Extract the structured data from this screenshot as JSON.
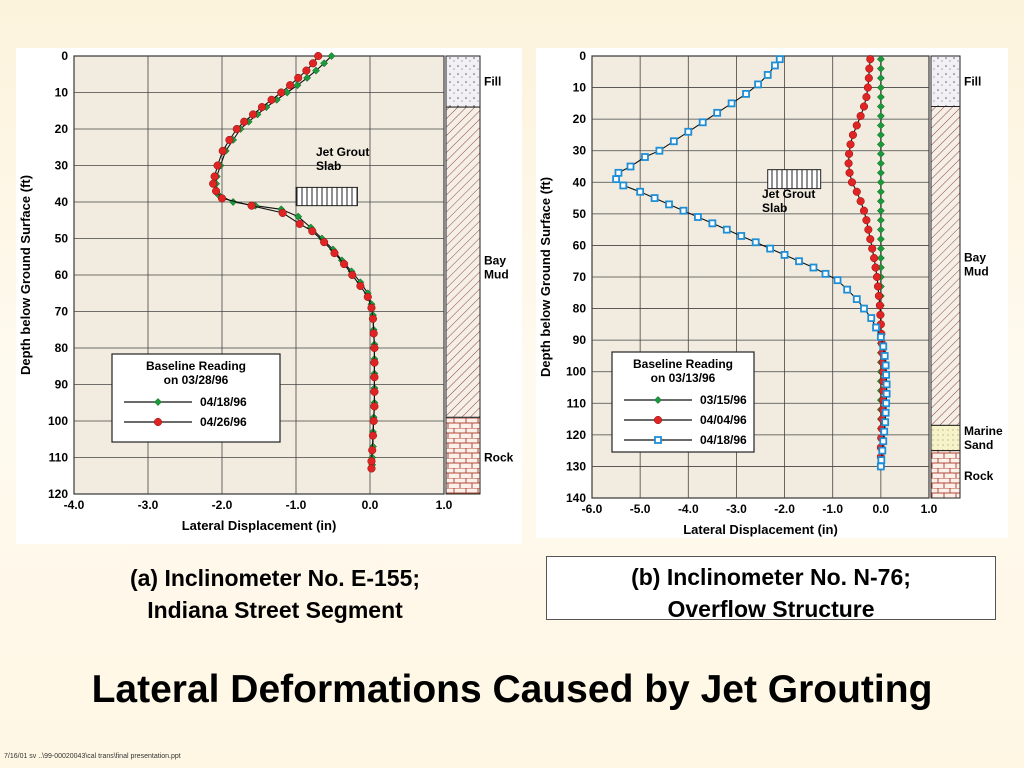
{
  "slide": {
    "title": "Lateral Deformations Caused by Jet Grouting",
    "footer_note": "7/16/01 sv ..\\99-00020043\\cal trans\\final presentation.ppt"
  },
  "chart_data": [
    {
      "type": "line",
      "caption_line1": "(a) Inclinometer No. E-155;",
      "caption_line2": "Indiana Street Segment",
      "xlabel": "Lateral Displacement (in)",
      "ylabel": "Depth below Ground Surface (ft)",
      "xlim": [
        -4.0,
        1.0
      ],
      "ylim": [
        0,
        120
      ],
      "xticks": [
        "-4.0",
        "-3.0",
        "-2.0",
        "-1.0",
        "0.0",
        "1.0"
      ],
      "yticks": [
        "0",
        "10",
        "20",
        "30",
        "40",
        "50",
        "60",
        "70",
        "80",
        "90",
        "100",
        "110",
        "120"
      ],
      "grid": true,
      "legend": {
        "title_line1": "Baseline Reading",
        "title_line2": "on 03/28/96",
        "placement": "bottom-left"
      },
      "annotation_line1": "Jet Grout",
      "annotation_line2": "Slab",
      "slab_x": [
        -1.0,
        -0.17
      ],
      "slab_depth": [
        36,
        41
      ],
      "strata": [
        {
          "name": "Fill",
          "top": 0,
          "bottom": 14,
          "pattern": "fill",
          "label_depth": 7
        },
        {
          "name": "Bay Mud",
          "top": 14,
          "bottom": 99,
          "pattern": "hatch",
          "label_depth": 58
        },
        {
          "name": "Rock",
          "top": 99,
          "bottom": 120,
          "pattern": "brick",
          "label_depth": 110
        }
      ],
      "series": [
        {
          "name": "04/18/96",
          "color": "#1b9a3c",
          "marker": "diamond",
          "points": [
            [
              -0.52,
              0
            ],
            [
              -0.62,
              2
            ],
            [
              -0.73,
              4
            ],
            [
              -0.85,
              6
            ],
            [
              -0.98,
              8
            ],
            [
              -1.12,
              10
            ],
            [
              -1.26,
              12
            ],
            [
              -1.4,
              14
            ],
            [
              -1.52,
              16
            ],
            [
              -1.64,
              18
            ],
            [
              -1.75,
              20
            ],
            [
              -1.85,
              23
            ],
            [
              -1.95,
              26
            ],
            [
              -2.02,
              30
            ],
            [
              -2.07,
              33
            ],
            [
              -2.08,
              35
            ],
            [
              -2.05,
              38
            ],
            [
              -1.85,
              40
            ],
            [
              -1.55,
              41
            ],
            [
              -1.2,
              42
            ],
            [
              -0.97,
              44
            ],
            [
              -0.8,
              47
            ],
            [
              -0.65,
              50
            ],
            [
              -0.5,
              53
            ],
            [
              -0.38,
              56
            ],
            [
              -0.25,
              59
            ],
            [
              -0.13,
              62
            ],
            [
              -0.03,
              65
            ],
            [
              0.02,
              68
            ],
            [
              0.04,
              71
            ],
            [
              0.05,
              75
            ],
            [
              0.06,
              79
            ],
            [
              0.06,
              83
            ],
            [
              0.06,
              87
            ],
            [
              0.06,
              91
            ],
            [
              0.06,
              95
            ],
            [
              0.05,
              99
            ],
            [
              0.04,
              103
            ],
            [
              0.04,
              107
            ],
            [
              0.03,
              110
            ],
            [
              0.03,
              112
            ]
          ]
        },
        {
          "name": "04/26/96",
          "color": "#e02424",
          "marker": "circle",
          "points": [
            [
              -0.7,
              0
            ],
            [
              -0.77,
              2
            ],
            [
              -0.86,
              4
            ],
            [
              -0.97,
              6
            ],
            [
              -1.08,
              8
            ],
            [
              -1.2,
              10
            ],
            [
              -1.33,
              12
            ],
            [
              -1.46,
              14
            ],
            [
              -1.58,
              16
            ],
            [
              -1.7,
              18
            ],
            [
              -1.8,
              20
            ],
            [
              -1.9,
              23
            ],
            [
              -1.99,
              26
            ],
            [
              -2.06,
              30
            ],
            [
              -2.1,
              33
            ],
            [
              -2.12,
              35
            ],
            [
              -2.08,
              37
            ],
            [
              -2.0,
              39
            ],
            [
              -1.6,
              41
            ],
            [
              -1.18,
              43
            ],
            [
              -0.95,
              46
            ],
            [
              -0.78,
              48
            ],
            [
              -0.62,
              51
            ],
            [
              -0.48,
              54
            ],
            [
              -0.35,
              57
            ],
            [
              -0.24,
              60
            ],
            [
              -0.13,
              63
            ],
            [
              -0.03,
              66
            ],
            [
              0.02,
              69
            ],
            [
              0.04,
              72
            ],
            [
              0.05,
              76
            ],
            [
              0.06,
              80
            ],
            [
              0.06,
              84
            ],
            [
              0.06,
              88
            ],
            [
              0.06,
              92
            ],
            [
              0.06,
              96
            ],
            [
              0.05,
              100
            ],
            [
              0.04,
              104
            ],
            [
              0.03,
              108
            ],
            [
              0.02,
              111
            ],
            [
              0.02,
              113
            ]
          ]
        }
      ]
    },
    {
      "type": "line",
      "caption_line1": "(b) Inclinometer No. N-76;",
      "caption_line2": "Overflow Structure",
      "xlabel": "Lateral Displacement (in)",
      "ylabel": "Depth below Ground Surface (ft)",
      "xlim": [
        -6.0,
        1.0
      ],
      "ylim": [
        0,
        140
      ],
      "xticks": [
        "-6.0",
        "-5.0",
        "-4.0",
        "-3.0",
        "-2.0",
        "-1.0",
        "0.0",
        "1.0"
      ],
      "yticks": [
        "0",
        "10",
        "20",
        "30",
        "40",
        "50",
        "60",
        "70",
        "80",
        "90",
        "100",
        "110",
        "120",
        "130",
        "140"
      ],
      "grid": true,
      "legend": {
        "title_line1": "Baseline Reading",
        "title_line2": "on 03/13/96",
        "placement": "bottom-center"
      },
      "annotation_line1": "Jet Grout",
      "annotation_line2": "Slab",
      "slab_x": [
        -2.35,
        -1.25
      ],
      "slab_depth": [
        36,
        42
      ],
      "strata": [
        {
          "name": "Fill",
          "top": 0,
          "bottom": 16,
          "pattern": "fill",
          "label_depth": 8
        },
        {
          "name": "Bay Mud",
          "top": 16,
          "bottom": 117,
          "pattern": "hatch",
          "label_depth": 66
        },
        {
          "name": "Marine Sand",
          "top": 117,
          "bottom": 125,
          "pattern": "sand",
          "label_depth": 121
        },
        {
          "name": "Rock",
          "top": 125,
          "bottom": 140,
          "pattern": "brick",
          "label_depth": 133
        }
      ],
      "series": [
        {
          "name": "03/15/96",
          "color": "#1b9a3c",
          "marker": "diamond",
          "points": [
            [
              0.0,
              1
            ],
            [
              0.0,
              4
            ],
            [
              0.0,
              7
            ],
            [
              0.0,
              10
            ],
            [
              0.0,
              13
            ],
            [
              0.0,
              16
            ],
            [
              0.0,
              19
            ],
            [
              0.0,
              22
            ],
            [
              0.0,
              25
            ],
            [
              0.0,
              28
            ],
            [
              0.0,
              31
            ],
            [
              0.0,
              34
            ],
            [
              0.0,
              37
            ],
            [
              0.0,
              40
            ],
            [
              0.0,
              43
            ],
            [
              0.0,
              46
            ],
            [
              0.0,
              49
            ],
            [
              0.0,
              52
            ],
            [
              0.0,
              55
            ],
            [
              0.0,
              58
            ],
            [
              0.0,
              61
            ],
            [
              0.0,
              64
            ],
            [
              0.0,
              67
            ],
            [
              0.0,
              70
            ],
            [
              0.0,
              73
            ],
            [
              0.0,
              76
            ],
            [
              0.0,
              79
            ],
            [
              0.0,
              82
            ],
            [
              0.0,
              85
            ],
            [
              0.0,
              88
            ],
            [
              0.0,
              91
            ],
            [
              0.0,
              94
            ],
            [
              0.0,
              97
            ],
            [
              0.0,
              100
            ],
            [
              0.0,
              103
            ],
            [
              0.0,
              106
            ],
            [
              0.0,
              109
            ],
            [
              0.0,
              112
            ],
            [
              0.0,
              115
            ],
            [
              0.0,
              118
            ],
            [
              0.0,
              121
            ],
            [
              0.0,
              124
            ],
            [
              0.0,
              127
            ],
            [
              0.0,
              130
            ]
          ]
        },
        {
          "name": "04/04/96",
          "color": "#e02424",
          "marker": "circle",
          "points": [
            [
              -0.22,
              1
            ],
            [
              -0.24,
              4
            ],
            [
              -0.25,
              7
            ],
            [
              -0.27,
              10
            ],
            [
              -0.3,
              13
            ],
            [
              -0.35,
              16
            ],
            [
              -0.42,
              19
            ],
            [
              -0.5,
              22
            ],
            [
              -0.58,
              25
            ],
            [
              -0.63,
              28
            ],
            [
              -0.66,
              31
            ],
            [
              -0.67,
              34
            ],
            [
              -0.65,
              37
            ],
            [
              -0.6,
              40
            ],
            [
              -0.5,
              43
            ],
            [
              -0.42,
              46
            ],
            [
              -0.35,
              49
            ],
            [
              -0.3,
              52
            ],
            [
              -0.26,
              55
            ],
            [
              -0.22,
              58
            ],
            [
              -0.18,
              61
            ],
            [
              -0.14,
              64
            ],
            [
              -0.11,
              67
            ],
            [
              -0.08,
              70
            ],
            [
              -0.06,
              73
            ],
            [
              -0.04,
              76
            ],
            [
              -0.02,
              79
            ],
            [
              -0.01,
              82
            ],
            [
              0.0,
              85
            ],
            [
              0.01,
              88
            ],
            [
              0.02,
              91
            ],
            [
              0.03,
              94
            ],
            [
              0.04,
              97
            ],
            [
              0.05,
              100
            ],
            [
              0.05,
              103
            ],
            [
              0.05,
              106
            ],
            [
              0.05,
              109
            ],
            [
              0.04,
              112
            ],
            [
              0.03,
              115
            ],
            [
              0.02,
              118
            ],
            [
              0.01,
              121
            ],
            [
              0.0,
              124
            ],
            [
              0.0,
              127
            ],
            [
              0.0,
              130
            ]
          ]
        },
        {
          "name": "04/18/96",
          "color": "#1e8fd6",
          "marker": "square",
          "points": [
            [
              -2.1,
              1
            ],
            [
              -2.2,
              3
            ],
            [
              -2.35,
              6
            ],
            [
              -2.55,
              9
            ],
            [
              -2.8,
              12
            ],
            [
              -3.1,
              15
            ],
            [
              -3.4,
              18
            ],
            [
              -3.7,
              21
            ],
            [
              -4.0,
              24
            ],
            [
              -4.3,
              27
            ],
            [
              -4.6,
              30
            ],
            [
              -4.9,
              32
            ],
            [
              -5.2,
              35
            ],
            [
              -5.45,
              37
            ],
            [
              -5.5,
              39
            ],
            [
              -5.35,
              41
            ],
            [
              -5.0,
              43
            ],
            [
              -4.7,
              45
            ],
            [
              -4.4,
              47
            ],
            [
              -4.1,
              49
            ],
            [
              -3.8,
              51
            ],
            [
              -3.5,
              53
            ],
            [
              -3.2,
              55
            ],
            [
              -2.9,
              57
            ],
            [
              -2.6,
              59
            ],
            [
              -2.3,
              61
            ],
            [
              -2.0,
              63
            ],
            [
              -1.7,
              65
            ],
            [
              -1.4,
              67
            ],
            [
              -1.15,
              69
            ],
            [
              -0.9,
              71
            ],
            [
              -0.7,
              74
            ],
            [
              -0.5,
              77
            ],
            [
              -0.35,
              80
            ],
            [
              -0.2,
              83
            ],
            [
              -0.1,
              86
            ],
            [
              0.0,
              89
            ],
            [
              0.05,
              92
            ],
            [
              0.08,
              95
            ],
            [
              0.1,
              98
            ],
            [
              0.11,
              101
            ],
            [
              0.12,
              104
            ],
            [
              0.12,
              107
            ],
            [
              0.11,
              110
            ],
            [
              0.1,
              113
            ],
            [
              0.09,
              116
            ],
            [
              0.07,
              119
            ],
            [
              0.05,
              122
            ],
            [
              0.03,
              125
            ],
            [
              0.01,
              128
            ],
            [
              0.0,
              130
            ]
          ]
        }
      ]
    }
  ]
}
